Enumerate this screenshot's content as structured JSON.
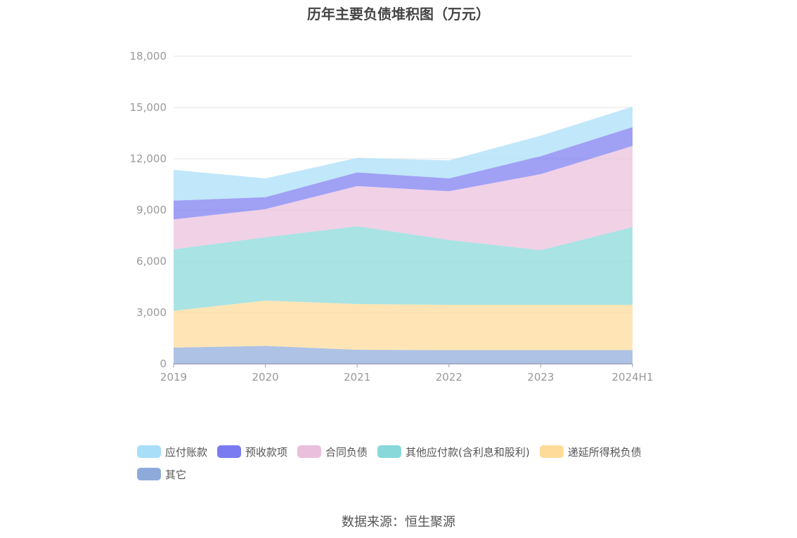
{
  "chart_data": {
    "type": "area",
    "stacked": true,
    "title": "历年主要负债堆积图（万元）",
    "categories": [
      "2019",
      "2020",
      "2021",
      "2022",
      "2023",
      "2024H1"
    ],
    "ylim": [
      0,
      18000
    ],
    "yticks": [
      "0",
      "3,000",
      "6,000",
      "9,000",
      "12,000",
      "15,000",
      "18,000"
    ],
    "ytick_values": [
      0,
      3000,
      6000,
      9000,
      12000,
      15000,
      18000
    ],
    "grid": true,
    "legend_position": "bottom",
    "series": [
      {
        "name": "其它",
        "color": "#8eaadb",
        "values": [
          950,
          1050,
          820,
          800,
          800,
          800
        ]
      },
      {
        "name": "递延所得税负债",
        "color": "#ffdb99",
        "values": [
          2150,
          2650,
          2680,
          2650,
          2650,
          2650
        ]
      },
      {
        "name": "其他应付款(含利息和股利)",
        "color": "#88d8da",
        "values": [
          3600,
          3700,
          4550,
          3800,
          3200,
          4550
        ]
      },
      {
        "name": "合同负债",
        "color": "#eabfdd",
        "values": [
          1750,
          1650,
          2350,
          2850,
          4450,
          4750
        ]
      },
      {
        "name": "预收款项",
        "color": "#7b7bf1",
        "values": [
          1100,
          700,
          800,
          750,
          1050,
          1100
        ]
      },
      {
        "name": "应付账款",
        "color": "#a9def8",
        "values": [
          1800,
          1100,
          850,
          1050,
          1200,
          1200
        ]
      }
    ]
  },
  "legend_order": [
    5,
    4,
    3,
    2,
    1,
    0
  ],
  "source": "数据来源：恒生聚源"
}
